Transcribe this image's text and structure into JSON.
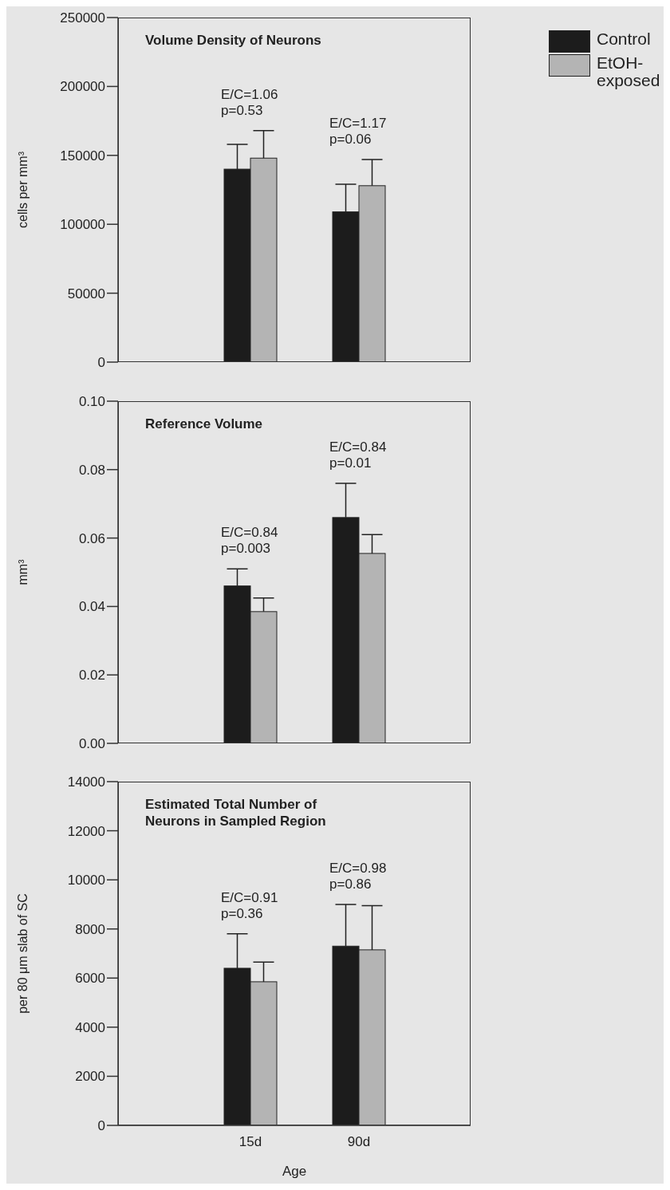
{
  "chart_data": [
    {
      "type": "bar",
      "title": "Volume Density of Neurons",
      "ylabel": "cells per mm³",
      "categories": [
        null,
        null
      ],
      "series": [
        {
          "name": "Control",
          "color": "#1c1c1c",
          "values": [
            140000,
            109000
          ],
          "errors": [
            18000,
            20000
          ]
        },
        {
          "name": "EtOH-exposed",
          "color": "#b4b4b4",
          "values": [
            148000,
            128000
          ],
          "errors": [
            20000,
            19000
          ]
        }
      ],
      "ylim": [
        0,
        250000
      ],
      "yticks": [
        0,
        50000,
        100000,
        150000,
        200000,
        250000
      ],
      "tick_labels": "y",
      "legend": "top right",
      "annotations": [
        "E/C=1.06\np=0.53",
        "E/C=1.17\np=0.06"
      ]
    },
    {
      "type": "bar",
      "title": "Reference Volume",
      "ylabel": "mm³",
      "categories": [
        null,
        null
      ],
      "series": [
        {
          "color": "#1c1c1c",
          "values": [
            0.046,
            0.066
          ],
          "errors": [
            0.005,
            0.01
          ]
        },
        {
          "color": "#b4b4b4",
          "values": [
            0.0385,
            0.0555
          ],
          "errors": [
            0.004,
            0.0055
          ]
        }
      ],
      "ylim": [
        0,
        0.1
      ],
      "yticks": [
        {
          "value": 0,
          "label": "0.00"
        },
        {
          "value": 0.02,
          "label": "0.02"
        },
        {
          "value": 0.04,
          "label": "0.04"
        },
        {
          "value": 0.06,
          "label": "0.06"
        },
        {
          "value": 0.08,
          "label": "0.08"
        },
        {
          "value": 0.1,
          "label": "0.10"
        }
      ],
      "tick_labels": "y",
      "annotations": [
        "E/C=0.84\np=0.003",
        "E/C=0.84\np=0.01"
      ]
    },
    {
      "type": "bar",
      "title": "Estimated Total Number of Neurons in Sampled Region",
      "ylabel": "per 80 μm slab of SC",
      "xlabel": "Age",
      "categories": [
        "15d",
        "90d"
      ],
      "series": [
        {
          "color": "#1c1c1c",
          "values": [
            6400,
            7300
          ],
          "errors": [
            1400,
            1700
          ]
        },
        {
          "color": "#b4b4b4",
          "values": [
            5850,
            7150
          ],
          "errors": [
            800,
            1800
          ]
        }
      ],
      "ylim": [
        0,
        14000
      ],
      "yticks": [
        0,
        2000,
        4000,
        6000,
        8000,
        10000,
        12000,
        14000
      ],
      "annotations": [
        "E/C=0.91\np=0.36",
        "E/C=0.98\np=0.86"
      ]
    }
  ]
}
